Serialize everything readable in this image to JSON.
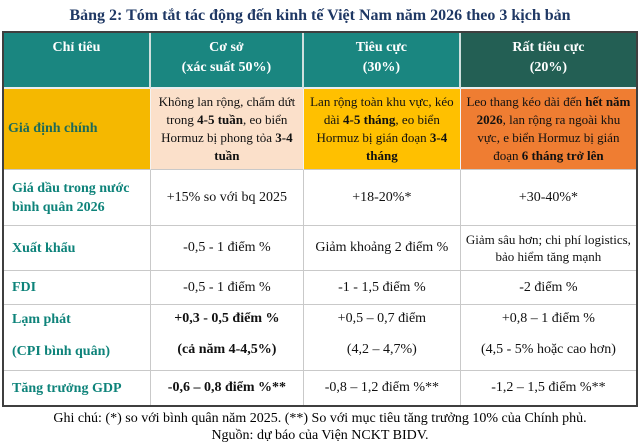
{
  "title": "Bảng 2: Tóm tắt tác động đến kinh tế Việt Nam năm 2026 theo 3 kịch bản",
  "header": {
    "criteria": "Chỉ tiêu",
    "scenarios": [
      {
        "name": "Cơ sở",
        "probability": "(xác suất 50%)"
      },
      {
        "name": "Tiêu cực",
        "probability": "(30%)"
      },
      {
        "name": "Rất tiêu cực",
        "probability": "(20%)"
      }
    ]
  },
  "rows": {
    "assumption": {
      "label": "Giả định chính",
      "base": [
        {
          "t": "Không lan rộng, chấm dứt trong ",
          "b": false
        },
        {
          "t": "4-5 tuần",
          "b": true
        },
        {
          "t": ", eo biển Hormuz bị phong tỏa ",
          "b": false
        },
        {
          "t": "3-4 tuần",
          "b": true
        }
      ],
      "negative": [
        {
          "t": "Lan rộng toàn khu vực, kéo dài ",
          "b": false
        },
        {
          "t": "4-5 tháng",
          "b": true
        },
        {
          "t": ", eo biển Hormuz bị gián đoạn ",
          "b": false
        },
        {
          "t": "3-4 tháng",
          "b": true
        }
      ],
      "very_negative": [
        {
          "t": "Leo thang kéo dài đến ",
          "b": false
        },
        {
          "t": "hết năm 2026",
          "b": true
        },
        {
          "t": ", lan rộng ra ngoài khu vực, e biển Hormuz bị gián đoạn ",
          "b": false
        },
        {
          "t": "6 tháng trở lên",
          "b": true
        }
      ]
    },
    "oil_price": {
      "label": "Giá dầu trong nước bình quân 2026",
      "base": "+15% so với bq 2025",
      "negative": "+18-20%*",
      "very_negative": "+30-40%*"
    },
    "exports": {
      "label": "Xuất khẩu",
      "base": "-0,5 - 1 điểm %",
      "negative": "Giảm khoảng 2 điểm %",
      "very_negative": "Giảm sâu hơn; chi phí logistics, bảo hiểm tăng mạnh"
    },
    "fdi": {
      "label": "FDI",
      "base": "-0,5 - 1 điểm %",
      "negative": "-1 - 1,5 điểm %",
      "very_negative": "-2 điểm %"
    },
    "inflation": {
      "label_line1": "Lạm phát",
      "label_line2": "(CPI bình quân)",
      "base_line1": "+0,3 - 0,5 điểm %",
      "base_line2": "(cả năm 4-4,5%)",
      "negative_line1": "+0,5 – 0,7 điểm",
      "negative_line2": "(4,2 – 4,7%)",
      "very_negative_line1": "+0,8 – 1 điểm %",
      "very_negative_line2": "(4,5 - 5% hoặc cao hơn)"
    },
    "gdp_growth": {
      "label": "Tăng trưởng GDP",
      "base": "-0,6 – 0,8 điểm %**",
      "negative": "-0,8 – 1,2 điểm %**",
      "very_negative": "-1,2 – 1,5 điểm %**"
    }
  },
  "footnotes": {
    "note": "Ghi chú: (*) so với bình quân năm 2025. (**) So với mục tiêu tăng trưởng 10% của Chính phủ.",
    "source": "Nguồn: dự báo của Viện NCKT BIDV."
  },
  "colors": {
    "header_teal": "#1A8680",
    "header_dark_teal": "#235F54",
    "label_teal": "#0E837A",
    "assumption_label_teal": "#1D6A5A",
    "gold": "#F5B800",
    "yellow": "#FFC000",
    "peach": "#FBE0CA",
    "orange": "#EF7D32",
    "title_navy": "#1F3864"
  }
}
